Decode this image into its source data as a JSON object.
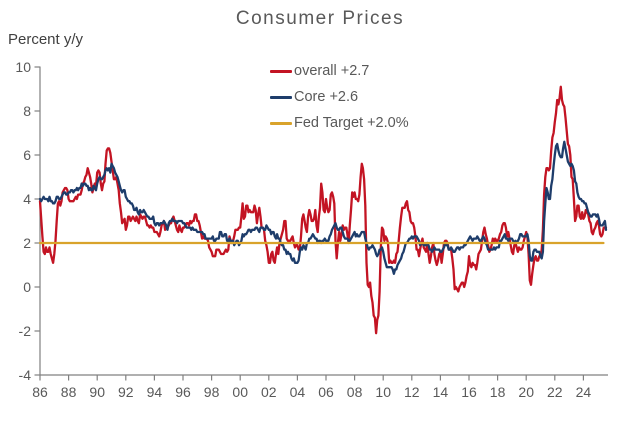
{
  "title": "Consumer Prices",
  "y_axis_unit": "Percent y/y",
  "legend": [
    {
      "label": "overall +2.7",
      "color": "#c31423"
    },
    {
      "label": "Core +2.6",
      "color": "#1e3d6b"
    },
    {
      "label": "Fed Target +2.0%",
      "color": "#d9a32b"
    }
  ],
  "colors": {
    "overall": "#c31423",
    "core": "#1e3d6b",
    "fed_target": "#d9a32b",
    "axis": "#808080",
    "tick_text": "#595959"
  },
  "chart_data": {
    "type": "line",
    "title": "Consumer Prices",
    "ylabel": "Percent y/y",
    "x_unit": "year, monthly observations",
    "x_start_year": 1986.0,
    "x_months_per_point": 1,
    "xlim": [
      1986.0,
      2025.7
    ],
    "ylim": [
      -4,
      10
    ],
    "grid": false,
    "legend_position": "top-center",
    "y_ticks": [
      10,
      8,
      6,
      4,
      2,
      0,
      -2,
      -4
    ],
    "x_tick_years": [
      1986,
      1988,
      1990,
      1992,
      1994,
      1996,
      1998,
      2000,
      2002,
      2004,
      2006,
      2008,
      2010,
      2012,
      2014,
      2016,
      2018,
      2020,
      2022,
      2024
    ],
    "x_tick_labels": [
      "86",
      "88",
      "90",
      "92",
      "94",
      "96",
      "98",
      "00",
      "02",
      "04",
      "06",
      "08",
      "10",
      "12",
      "14",
      "16",
      "18",
      "20",
      "22",
      "24"
    ],
    "series": [
      {
        "name": "overall +2.7",
        "color": "#c31423",
        "values": [
          3.9,
          3.1,
          2.3,
          1.6,
          1.5,
          1.8,
          1.6,
          1.6,
          1.8,
          1.5,
          1.3,
          1.1,
          1.5,
          2.1,
          3.0,
          3.8,
          3.9,
          3.7,
          3.9,
          4.3,
          4.4,
          4.5,
          4.5,
          4.4,
          4.0,
          3.9,
          3.9,
          3.9,
          3.9,
          4.0,
          4.1,
          4.0,
          4.2,
          4.2,
          4.2,
          4.4,
          4.7,
          4.8,
          5.0,
          5.1,
          5.4,
          5.2,
          5.0,
          4.7,
          4.3,
          4.5,
          4.7,
          4.6,
          5.2,
          5.3,
          5.2,
          4.7,
          4.4,
          4.7,
          4.8,
          5.6,
          6.2,
          6.3,
          6.3,
          6.1,
          5.7,
          5.3,
          4.9,
          4.9,
          5.0,
          4.7,
          4.4,
          3.8,
          3.4,
          2.9,
          3.0,
          3.1,
          2.6,
          2.8,
          3.2,
          3.2,
          3.0,
          3.1,
          3.2,
          3.1,
          3.0,
          3.2,
          3.0,
          2.9,
          3.3,
          3.2,
          3.1,
          3.2,
          3.2,
          3.0,
          2.8,
          2.8,
          2.7,
          2.8,
          2.7,
          2.7,
          2.5,
          2.5,
          2.5,
          2.4,
          2.3,
          2.5,
          2.8,
          2.9,
          3.0,
          2.6,
          2.7,
          2.7,
          2.8,
          2.9,
          2.9,
          3.1,
          3.2,
          3.0,
          2.8,
          2.6,
          2.5,
          2.8,
          2.6,
          2.5,
          2.7,
          2.7,
          2.8,
          2.9,
          2.9,
          2.8,
          3.0,
          2.9,
          3.0,
          3.0,
          3.3,
          3.3,
          3.0,
          3.0,
          2.8,
          2.5,
          2.2,
          2.3,
          2.2,
          2.2,
          2.2,
          2.1,
          1.8,
          1.7,
          1.6,
          1.4,
          1.4,
          1.4,
          1.7,
          1.7,
          1.7,
          1.6,
          1.5,
          1.5,
          1.5,
          1.6,
          1.7,
          1.6,
          1.7,
          2.3,
          2.1,
          2.0,
          2.1,
          2.3,
          2.6,
          2.6,
          2.6,
          2.7,
          2.7,
          3.2,
          3.8,
          3.1,
          3.2,
          3.7,
          3.7,
          3.4,
          3.5,
          3.4,
          3.4,
          3.4,
          3.7,
          3.5,
          2.9,
          3.3,
          3.6,
          3.2,
          2.7,
          2.7,
          2.6,
          2.1,
          1.9,
          1.6,
          1.1,
          1.1,
          1.5,
          1.6,
          1.2,
          1.1,
          1.5,
          1.8,
          1.5,
          2.0,
          2.2,
          2.4,
          2.6,
          3.0,
          3.0,
          2.2,
          2.1,
          2.1,
          2.1,
          2.2,
          2.3,
          2.0,
          1.8,
          1.9,
          1.9,
          1.7,
          1.7,
          2.3,
          3.1,
          3.3,
          3.0,
          2.7,
          2.5,
          3.2,
          3.5,
          3.3,
          3.0,
          3.0,
          3.1,
          3.5,
          2.8,
          2.5,
          3.2,
          3.6,
          4.7,
          4.3,
          3.5,
          3.4,
          4.0,
          3.6,
          3.4,
          3.5,
          4.2,
          4.3,
          4.1,
          3.8,
          2.1,
          1.3,
          2.0,
          2.5,
          2.1,
          2.4,
          2.8,
          2.6,
          2.7,
          2.7,
          2.4,
          2.0,
          2.8,
          3.5,
          4.3,
          4.1,
          4.3,
          4.0,
          4.0,
          3.9,
          4.2,
          5.0,
          5.6,
          5.4,
          4.9,
          3.7,
          1.1,
          0.1,
          0.0,
          0.2,
          -0.4,
          -0.7,
          -1.3,
          -1.4,
          -2.1,
          -1.5,
          -1.3,
          -0.2,
          1.8,
          2.7,
          2.6,
          2.1,
          2.3,
          2.2,
          2.0,
          1.1,
          1.2,
          1.1,
          1.1,
          1.2,
          1.1,
          1.5,
          1.6,
          2.1,
          2.7,
          3.2,
          3.6,
          3.6,
          3.6,
          3.8,
          3.9,
          3.5,
          3.4,
          3.0,
          2.9,
          2.9,
          2.7,
          2.3,
          1.7,
          1.7,
          1.4,
          1.7,
          2.0,
          2.2,
          1.8,
          1.7,
          1.6,
          2.0,
          1.5,
          1.1,
          1.4,
          1.8,
          2.0,
          1.5,
          1.2,
          1.0,
          1.2,
          1.5,
          1.6,
          1.1,
          1.5,
          2.0,
          2.1,
          2.1,
          2.0,
          1.7,
          1.7,
          1.7,
          1.3,
          0.8,
          -0.1,
          0.0,
          -0.1,
          -0.2,
          0.0,
          0.1,
          0.2,
          0.2,
          0.0,
          0.2,
          0.5,
          0.7,
          1.4,
          1.0,
          0.9,
          1.1,
          1.0,
          1.0,
          0.8,
          1.1,
          1.5,
          1.6,
          1.7,
          2.1,
          2.5,
          2.7,
          2.4,
          2.2,
          1.9,
          1.6,
          1.7,
          1.9,
          2.2,
          2.0,
          2.2,
          2.1,
          2.1,
          2.2,
          2.4,
          2.5,
          2.8,
          2.9,
          2.9,
          2.7,
          2.3,
          2.5,
          2.2,
          1.9,
          1.6,
          1.5,
          1.9,
          2.0,
          1.8,
          1.6,
          1.8,
          1.7,
          1.7,
          1.8,
          2.1,
          2.3,
          2.5,
          2.3,
          1.5,
          0.3,
          0.1,
          0.6,
          1.0,
          1.3,
          1.4,
          1.2,
          1.2,
          1.4,
          1.4,
          1.7,
          2.6,
          4.2,
          5.0,
          5.4,
          5.4,
          5.3,
          5.4,
          6.2,
          6.8,
          7.0,
          7.5,
          7.9,
          8.5,
          8.3,
          8.6,
          9.1,
          8.5,
          8.3,
          8.2,
          7.7,
          7.1,
          6.5,
          6.4,
          6.0,
          5.0,
          4.9,
          4.0,
          3.0,
          3.2,
          3.7,
          3.7,
          3.2,
          3.1,
          3.4,
          3.1,
          3.2,
          3.5,
          3.4,
          3.3,
          3.0,
          2.9,
          2.5,
          2.4,
          2.6,
          2.7,
          2.9,
          3.0,
          2.8,
          2.4,
          2.3,
          2.4,
          2.7,
          2.7,
          2.7
        ]
      },
      {
        "name": "Core +2.6",
        "color": "#1e3d6b",
        "values": [
          4.0,
          3.9,
          4.0,
          4.1,
          4.0,
          4.0,
          4.0,
          3.9,
          4.1,
          3.9,
          3.9,
          3.8,
          3.8,
          3.9,
          4.1,
          4.1,
          4.0,
          4.0,
          4.1,
          4.2,
          4.3,
          4.3,
          4.2,
          4.2,
          4.3,
          4.3,
          4.4,
          4.4,
          4.3,
          4.4,
          4.4,
          4.5,
          4.4,
          4.5,
          4.5,
          4.7,
          4.6,
          4.7,
          4.7,
          4.6,
          4.6,
          4.4,
          4.5,
          4.4,
          4.4,
          4.6,
          4.5,
          4.4,
          4.7,
          4.9,
          5.0,
          4.9,
          4.9,
          5.0,
          5.1,
          5.3,
          5.4,
          5.3,
          5.4,
          5.2,
          5.6,
          5.5,
          5.4,
          5.2,
          5.1,
          5.0,
          4.8,
          4.6,
          4.4,
          4.3,
          4.4,
          4.4,
          4.1,
          4.0,
          3.9,
          3.9,
          3.8,
          3.8,
          3.7,
          3.5,
          3.5,
          3.6,
          3.4,
          3.3,
          3.5,
          3.4,
          3.4,
          3.5,
          3.4,
          3.3,
          3.2,
          3.2,
          3.1,
          3.1,
          3.1,
          3.2,
          2.9,
          2.8,
          2.9,
          2.9,
          2.8,
          2.9,
          2.9,
          2.9,
          3.0,
          2.9,
          2.8,
          2.6,
          2.9,
          3.0,
          3.0,
          3.1,
          3.0,
          3.0,
          3.0,
          2.9,
          3.0,
          3.0,
          3.0,
          3.0,
          2.9,
          2.9,
          2.8,
          2.7,
          2.7,
          2.7,
          2.7,
          2.6,
          2.7,
          2.6,
          2.6,
          2.6,
          2.5,
          2.5,
          2.5,
          2.5,
          2.5,
          2.4,
          2.4,
          2.2,
          2.2,
          2.2,
          2.2,
          2.2,
          2.2,
          2.3,
          2.1,
          2.1,
          2.2,
          2.2,
          2.2,
          2.5,
          2.5,
          2.3,
          2.3,
          2.4,
          2.4,
          2.1,
          2.1,
          2.2,
          2.0,
          2.1,
          2.1,
          1.9,
          2.0,
          2.1,
          2.1,
          1.9,
          2.0,
          2.1,
          2.4,
          2.3,
          2.4,
          2.4,
          2.5,
          2.6,
          2.6,
          2.5,
          2.6,
          2.6,
          2.6,
          2.7,
          2.7,
          2.6,
          2.5,
          2.7,
          2.7,
          2.7,
          2.6,
          2.6,
          2.8,
          2.7,
          2.6,
          2.6,
          2.4,
          2.5,
          2.5,
          2.3,
          2.2,
          2.4,
          2.2,
          2.2,
          2.0,
          1.9,
          1.9,
          1.7,
          1.7,
          1.5,
          1.6,
          1.5,
          1.5,
          1.3,
          1.2,
          1.3,
          1.1,
          1.1,
          1.1,
          1.2,
          1.6,
          1.8,
          1.7,
          1.9,
          1.8,
          1.7,
          2.0,
          2.0,
          2.2,
          2.2,
          2.3,
          2.4,
          2.3,
          2.2,
          2.2,
          2.0,
          2.1,
          2.1,
          2.0,
          2.1,
          2.1,
          2.2,
          2.1,
          2.1,
          2.1,
          2.3,
          2.4,
          2.6,
          2.7,
          2.8,
          2.9,
          2.7,
          2.6,
          2.6,
          2.7,
          2.7,
          2.5,
          2.3,
          2.2,
          2.2,
          2.2,
          2.1,
          2.1,
          2.2,
          2.3,
          2.4,
          2.5,
          2.3,
          2.4,
          2.3,
          2.3,
          2.4,
          2.5,
          2.5,
          2.5,
          2.2,
          2.0,
          1.8,
          1.7,
          1.8,
          1.8,
          1.9,
          1.8,
          1.7,
          1.5,
          1.4,
          1.5,
          1.7,
          1.7,
          1.8,
          1.6,
          1.3,
          1.1,
          0.9,
          0.9,
          0.9,
          0.9,
          0.9,
          0.8,
          0.6,
          0.8,
          0.8,
          1.0,
          1.1,
          1.2,
          1.3,
          1.5,
          1.6,
          1.8,
          2.0,
          2.0,
          2.1,
          2.2,
          2.2,
          2.3,
          2.2,
          2.3,
          2.3,
          2.3,
          2.2,
          2.1,
          1.9,
          2.0,
          2.0,
          1.9,
          1.9,
          1.9,
          2.0,
          1.9,
          1.7,
          1.7,
          1.6,
          1.7,
          1.8,
          1.7,
          1.7,
          1.7,
          1.7,
          1.6,
          1.6,
          1.7,
          1.8,
          2.0,
          1.9,
          1.9,
          1.7,
          1.7,
          1.8,
          1.7,
          1.6,
          1.6,
          1.7,
          1.8,
          1.8,
          1.7,
          1.8,
          1.8,
          1.8,
          1.9,
          1.9,
          2.0,
          2.1,
          2.2,
          2.3,
          2.2,
          2.1,
          2.2,
          2.2,
          2.2,
          2.3,
          2.2,
          2.1,
          2.1,
          2.2,
          2.3,
          2.2,
          2.0,
          1.9,
          1.7,
          1.7,
          1.7,
          1.7,
          1.7,
          1.8,
          1.7,
          1.8,
          1.8,
          1.8,
          2.1,
          2.1,
          2.2,
          2.3,
          2.4,
          2.2,
          2.2,
          2.1,
          2.2,
          2.2,
          2.2,
          2.1,
          2.0,
          2.1,
          2.0,
          2.1,
          2.2,
          2.4,
          2.4,
          2.3,
          2.3,
          2.3,
          2.3,
          2.4,
          2.1,
          1.4,
          1.2,
          1.2,
          1.6,
          1.7,
          1.7,
          1.6,
          1.6,
          1.6,
          1.4,
          1.3,
          1.6,
          3.0,
          3.8,
          4.5,
          4.3,
          4.0,
          4.0,
          4.6,
          4.9,
          5.5,
          6.0,
          6.4,
          6.5,
          6.2,
          6.0,
          5.9,
          5.9,
          6.3,
          6.6,
          6.3,
          6.0,
          5.7,
          5.6,
          5.5,
          5.6,
          5.5,
          5.3,
          4.8,
          4.7,
          4.3,
          4.1,
          4.0,
          4.0,
          3.9,
          3.9,
          3.8,
          3.8,
          3.6,
          3.4,
          3.3,
          3.2,
          3.2,
          3.3,
          3.3,
          3.3,
          3.2,
          3.3,
          3.1,
          2.8,
          2.8,
          2.8,
          2.9,
          3.0,
          2.6
        ]
      },
      {
        "name": "Fed Target +2.0%",
        "color": "#d9a32b",
        "type": "constant",
        "value": 2.0
      }
    ]
  }
}
